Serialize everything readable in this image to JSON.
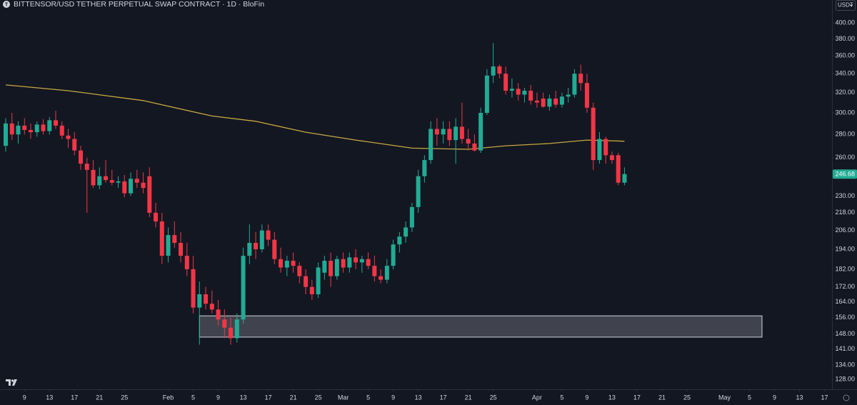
{
  "chart_data": {
    "type": "candlestick",
    "title": "BITTENSOR/USD TETHER PERPETUAL SWAP CONTRACT · 1D · BloFin",
    "currency_button": "USDT",
    "log_scale": true,
    "up_color": "#22ab94",
    "down_color": "#f23645",
    "open": [
      270,
      290,
      280,
      288,
      284,
      282,
      289,
      283,
      293,
      288,
      279,
      276,
      266,
      255,
      250,
      238,
      245,
      242,
      240,
      241,
      232,
      243,
      240,
      245,
      218,
      212,
      190,
      203,
      198,
      190,
      182,
      161,
      168,
      163,
      160,
      155,
      151,
      146,
      155,
      190,
      198,
      194,
      206,
      200,
      188,
      183,
      187,
      184,
      178,
      172,
      168,
      180,
      187,
      178,
      188,
      183,
      189,
      186,
      188,
      184,
      178,
      176,
      184,
      197,
      202,
      208,
      222,
      245,
      258,
      285,
      280,
      285,
      275,
      287,
      276,
      272,
      266,
      300,
      338,
      348,
      340,
      322,
      324,
      318,
      322,
      312,
      314,
      306,
      314,
      308,
      316,
      318,
      340,
      330,
      305,
      258,
      276,
      262,
      262,
      240
    ],
    "high": [
      295,
      300,
      292,
      295,
      290,
      292,
      294,
      296,
      302,
      292,
      285,
      282,
      270,
      260,
      258,
      252,
      258,
      250,
      245,
      246,
      248,
      250,
      248,
      252,
      225,
      218,
      208,
      212,
      205,
      198,
      190,
      175,
      172,
      170,
      165,
      160,
      156,
      158,
      195,
      210,
      205,
      210,
      210,
      205,
      195,
      190,
      192,
      186,
      182,
      176,
      186,
      190,
      192,
      190,
      192,
      192,
      194,
      190,
      192,
      190,
      182,
      188,
      200,
      205,
      212,
      225,
      250,
      262,
      292,
      295,
      292,
      292,
      295,
      310,
      285,
      280,
      305,
      345,
      375,
      350,
      348,
      335,
      330,
      325,
      328,
      320,
      320,
      318,
      322,
      320,
      325,
      345,
      350,
      340,
      310,
      282,
      278,
      265,
      264,
      252
    ],
    "low": [
      265,
      275,
      272,
      280,
      276,
      278,
      280,
      280,
      285,
      276,
      268,
      262,
      250,
      218,
      236,
      235,
      240,
      238,
      236,
      229,
      230,
      236,
      232,
      215,
      208,
      185,
      186,
      195,
      186,
      178,
      158,
      143,
      160,
      158,
      152,
      146,
      143,
      144,
      153,
      185,
      188,
      192,
      196,
      185,
      180,
      178,
      180,
      174,
      168,
      165,
      166,
      176,
      172,
      176,
      180,
      180,
      182,
      180,
      182,
      175,
      174,
      174,
      182,
      192,
      198,
      205,
      218,
      240,
      255,
      270,
      272,
      270,
      255,
      272,
      266,
      265,
      264,
      298,
      330,
      335,
      318,
      315,
      312,
      310,
      308,
      305,
      305,
      302,
      305,
      305,
      310,
      315,
      322,
      300,
      250,
      255,
      255,
      255,
      238,
      238
    ],
    "close": [
      290,
      280,
      288,
      284,
      282,
      289,
      283,
      293,
      288,
      279,
      276,
      266,
      255,
      250,
      238,
      245,
      242,
      240,
      241,
      232,
      243,
      240,
      236,
      218,
      212,
      190,
      203,
      198,
      190,
      182,
      161,
      168,
      163,
      160,
      155,
      151,
      146,
      155,
      190,
      198,
      194,
      206,
      200,
      188,
      183,
      187,
      184,
      178,
      172,
      168,
      183,
      187,
      178,
      188,
      183,
      189,
      186,
      188,
      184,
      178,
      176,
      184,
      197,
      202,
      208,
      222,
      245,
      258,
      285,
      280,
      285,
      275,
      287,
      276,
      272,
      266,
      300,
      338,
      348,
      340,
      322,
      324,
      318,
      322,
      312,
      310,
      306,
      314,
      308,
      316,
      318,
      340,
      330,
      305,
      258,
      276,
      262,
      258,
      240,
      246.68
    ],
    "moving_average": {
      "color": "#c8a640",
      "x": [
        0,
        10,
        22,
        33,
        40,
        48,
        56,
        65,
        74,
        80,
        87,
        93,
        99
      ],
      "values": [
        328,
        322,
        312,
        297,
        292,
        282,
        275,
        268,
        267,
        270,
        272,
        275,
        274
      ]
    },
    "zone": {
      "x": [
        31,
        121
      ],
      "y": [
        146.5,
        156.8
      ]
    },
    "xlim": [
      -0.914,
      132.2
    ],
    "ylim": [
      124,
      430.3
    ],
    "xticks": [
      {
        "value": 3,
        "label": "9"
      },
      {
        "value": 7,
        "label": "13"
      },
      {
        "value": 11,
        "label": "17"
      },
      {
        "value": 15,
        "label": "21"
      },
      {
        "value": 19,
        "label": "25"
      },
      {
        "value": 26,
        "label": "Feb"
      },
      {
        "value": 30,
        "label": "5"
      },
      {
        "value": 34,
        "label": "9"
      },
      {
        "value": 38,
        "label": "13"
      },
      {
        "value": 42,
        "label": "17"
      },
      {
        "value": 46,
        "label": "21"
      },
      {
        "value": 50,
        "label": "25"
      },
      {
        "value": 54,
        "label": "Mar"
      },
      {
        "value": 58,
        "label": "5"
      },
      {
        "value": 62,
        "label": "9"
      },
      {
        "value": 66,
        "label": "13"
      },
      {
        "value": 70,
        "label": "17"
      },
      {
        "value": 74,
        "label": "21"
      },
      {
        "value": 78,
        "label": "25"
      },
      {
        "value": 85,
        "label": "Apr"
      },
      {
        "value": 89,
        "label": "5"
      },
      {
        "value": 93,
        "label": "9"
      },
      {
        "value": 97,
        "label": "13"
      },
      {
        "value": 101,
        "label": "17"
      },
      {
        "value": 105,
        "label": "21"
      },
      {
        "value": 109,
        "label": "25"
      },
      {
        "value": 115,
        "label": "May"
      },
      {
        "value": 119,
        "label": "5"
      },
      {
        "value": 123,
        "label": "9"
      },
      {
        "value": 127,
        "label": "13"
      },
      {
        "value": 131,
        "label": "17"
      }
    ],
    "yticks": [
      {
        "value": 400,
        "label": "400.00"
      },
      {
        "value": 380,
        "label": "380.00"
      },
      {
        "value": 360,
        "label": "360.00"
      },
      {
        "value": 340,
        "label": "340.00"
      },
      {
        "value": 320,
        "label": "320.00"
      },
      {
        "value": 300,
        "label": "300.00"
      },
      {
        "value": 280,
        "label": "280.00"
      },
      {
        "value": 260,
        "label": "260.00"
      },
      {
        "value": 230,
        "label": "230.00"
      },
      {
        "value": 218,
        "label": "218.00"
      },
      {
        "value": 206,
        "label": "206.00"
      },
      {
        "value": 194,
        "label": "194.00"
      },
      {
        "value": 182,
        "label": "182.00"
      },
      {
        "value": 172,
        "label": "172.00"
      },
      {
        "value": 164,
        "label": "164.00"
      },
      {
        "value": 156,
        "label": "156.00"
      },
      {
        "value": 148,
        "label": "148.00"
      },
      {
        "value": 141,
        "label": "141.00"
      },
      {
        "value": 134,
        "label": "134.00"
      },
      {
        "value": 128,
        "label": "128.00"
      }
    ]
  }
}
